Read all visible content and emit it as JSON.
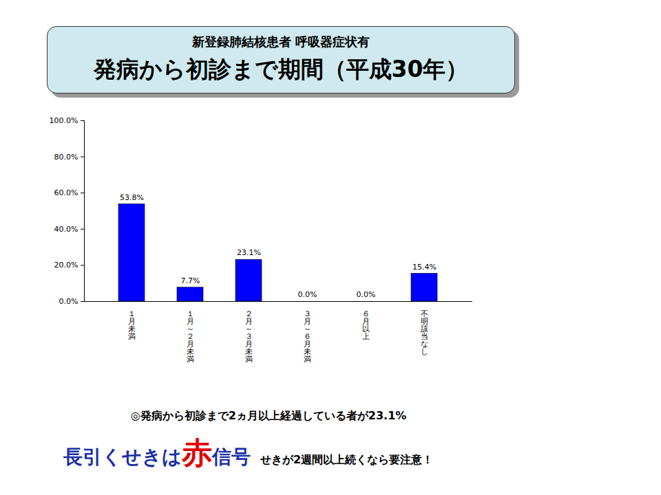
{
  "chart_data": {
    "type": "bar",
    "subtitle": "新登録肺結核患者 呼吸器症状有",
    "title": "発病から初診まで期間（平成30年）",
    "categories": [
      "１月未満",
      "１月～２月未満",
      "２月～３月未満",
      "３月～６月未満",
      "６月以上",
      "不明該当なし"
    ],
    "values": [
      53.8,
      7.7,
      23.1,
      0.0,
      0.0,
      15.4
    ],
    "value_labels": [
      "53.8%",
      "7.7%",
      "23.1%",
      "0.0%",
      "0.0%",
      "15.4%"
    ],
    "data_labels": true,
    "color": "#0000ff",
    "ylim": [
      0,
      100
    ],
    "yticks": [
      {
        "value": 0,
        "label": "0.0%"
      },
      {
        "value": 20,
        "label": "20.0%"
      },
      {
        "value": 40,
        "label": "40.0%"
      },
      {
        "value": 60,
        "label": "60.0%"
      },
      {
        "value": 80,
        "label": "80.0%"
      },
      {
        "value": 100,
        "label": "100.0%"
      }
    ],
    "grid": false,
    "annotations": [
      "◎発病から初診まで2ヵ月以上経過している者が23.1%",
      "長引くせきは",
      "赤",
      "信号",
      "せきが2週間以上続くなら要注意！"
    ]
  }
}
